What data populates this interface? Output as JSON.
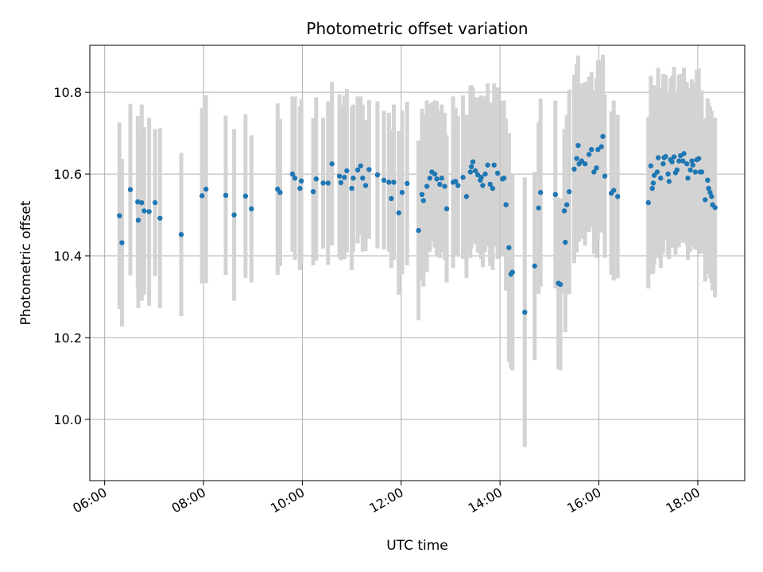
{
  "chart_data": {
    "type": "scatter",
    "title": "Photometric offset variation",
    "xlabel": "UTC time",
    "ylabel": "Photometric offset",
    "xlim": [
      5.7,
      18.95
    ],
    "ylim": [
      9.85,
      10.915
    ],
    "grid": true,
    "x_ticks": [
      {
        "value": 6,
        "label": "06:00"
      },
      {
        "value": 8,
        "label": "08:00"
      },
      {
        "value": 10,
        "label": "10:00"
      },
      {
        "value": 12,
        "label": "12:00"
      },
      {
        "value": 14,
        "label": "14:00"
      },
      {
        "value": 16,
        "label": "16:00"
      },
      {
        "value": 18,
        "label": "18:00"
      }
    ],
    "y_ticks": [
      {
        "value": 10.0,
        "label": "10.0"
      },
      {
        "value": 10.2,
        "label": "10.2"
      },
      {
        "value": 10.4,
        "label": "10.4"
      },
      {
        "value": 10.6,
        "label": "10.6"
      },
      {
        "value": 10.8,
        "label": "10.8"
      }
    ],
    "colors": {
      "point": "#1f77b4",
      "errorbar": "#d3d3d3",
      "grid": "#b0b0b0"
    },
    "series": [
      {
        "points": [
          [
            6.3,
            10.498,
            0.228
          ],
          [
            6.35,
            10.432,
            0.205
          ],
          [
            6.52,
            10.562,
            0.21
          ],
          [
            6.67,
            10.532,
            0.21
          ],
          [
            6.68,
            10.487,
            0.215
          ],
          [
            6.75,
            10.53,
            0.24
          ],
          [
            6.8,
            10.51,
            0.205
          ],
          [
            6.9,
            10.508,
            0.23
          ],
          [
            7.02,
            10.53,
            0.18
          ],
          [
            7.12,
            10.492,
            0.22
          ],
          [
            7.55,
            10.452,
            0.2
          ],
          [
            7.97,
            10.547,
            0.215
          ],
          [
            8.05,
            10.563,
            0.23
          ],
          [
            8.45,
            10.548,
            0.195
          ],
          [
            8.62,
            10.5,
            0.21
          ],
          [
            8.85,
            10.546,
            0.2
          ],
          [
            8.97,
            10.515,
            0.18
          ],
          [
            9.5,
            10.563,
            0.21
          ],
          [
            9.55,
            10.555,
            0.18
          ],
          [
            9.8,
            10.6,
            0.19
          ],
          [
            9.85,
            10.59,
            0.2
          ],
          [
            9.95,
            10.565,
            0.2
          ],
          [
            9.98,
            10.583,
            0.2
          ],
          [
            10.22,
            10.557,
            0.18
          ],
          [
            10.28,
            10.588,
            0.2
          ],
          [
            10.42,
            10.578,
            0.16
          ],
          [
            10.52,
            10.578,
            0.2
          ],
          [
            10.6,
            10.625,
            0.2
          ],
          [
            10.75,
            10.595,
            0.2
          ],
          [
            10.78,
            10.579,
            0.19
          ],
          [
            10.85,
            10.592,
            0.2
          ],
          [
            10.9,
            10.608,
            0.2
          ],
          [
            11.0,
            10.565,
            0.2
          ],
          [
            11.03,
            10.59,
            0.18
          ],
          [
            11.12,
            10.61,
            0.18
          ],
          [
            11.18,
            10.62,
            0.17
          ],
          [
            11.22,
            10.59,
            0.18
          ],
          [
            11.28,
            10.572,
            0.16
          ],
          [
            11.35,
            10.611,
            0.17
          ],
          [
            11.52,
            10.598,
            0.18
          ],
          [
            11.65,
            10.585,
            0.17
          ],
          [
            11.75,
            10.58,
            0.17
          ],
          [
            11.8,
            10.54,
            0.17
          ],
          [
            11.85,
            10.58,
            0.19
          ],
          [
            11.95,
            10.505,
            0.2
          ],
          [
            12.02,
            10.555,
            0.2
          ],
          [
            12.12,
            10.577,
            0.2
          ],
          [
            12.35,
            10.462,
            0.22
          ],
          [
            12.42,
            10.55,
            0.21
          ],
          [
            12.45,
            10.535,
            0.21
          ],
          [
            12.52,
            10.57,
            0.21
          ],
          [
            12.58,
            10.59,
            0.18
          ],
          [
            12.62,
            10.605,
            0.17
          ],
          [
            12.68,
            10.6,
            0.18
          ],
          [
            12.72,
            10.588,
            0.19
          ],
          [
            12.78,
            10.575,
            0.18
          ],
          [
            12.82,
            10.59,
            0.18
          ],
          [
            12.88,
            10.57,
            0.18
          ],
          [
            12.92,
            10.515,
            0.18
          ],
          [
            13.05,
            10.58,
            0.21
          ],
          [
            13.1,
            10.582,
            0.18
          ],
          [
            13.15,
            10.572,
            0.17
          ],
          [
            13.25,
            10.592,
            0.2
          ],
          [
            13.32,
            10.545,
            0.2
          ],
          [
            13.4,
            10.605,
            0.21
          ],
          [
            13.42,
            10.618,
            0.2
          ],
          [
            13.45,
            10.63,
            0.18
          ],
          [
            13.5,
            10.608,
            0.18
          ],
          [
            13.55,
            10.598,
            0.19
          ],
          [
            13.6,
            10.585,
            0.18
          ],
          [
            13.62,
            10.592,
            0.2
          ],
          [
            13.65,
            10.572,
            0.2
          ],
          [
            13.7,
            10.6,
            0.19
          ],
          [
            13.75,
            10.622,
            0.2
          ],
          [
            13.8,
            10.575,
            0.2
          ],
          [
            13.85,
            10.565,
            0.2
          ],
          [
            13.88,
            10.622,
            0.2
          ],
          [
            13.95,
            10.602,
            0.21
          ],
          [
            14.05,
            10.588,
            0.19
          ],
          [
            14.08,
            10.59,
            0.19
          ],
          [
            14.12,
            10.525,
            0.21
          ],
          [
            14.18,
            10.42,
            0.28
          ],
          [
            14.22,
            10.355,
            0.23
          ],
          [
            14.25,
            10.36,
            0.24
          ],
          [
            14.5,
            10.262,
            0.33
          ],
          [
            14.7,
            10.375,
            0.23
          ],
          [
            14.78,
            10.517,
            0.21
          ],
          [
            14.82,
            10.555,
            0.23
          ],
          [
            15.12,
            10.55,
            0.23
          ],
          [
            15.18,
            10.333,
            0.21
          ],
          [
            15.22,
            10.33,
            0.21
          ],
          [
            15.3,
            10.51,
            0.2
          ],
          [
            15.32,
            10.433,
            0.22
          ],
          [
            15.35,
            10.525,
            0.22
          ],
          [
            15.4,
            10.557,
            0.25
          ],
          [
            15.5,
            10.612,
            0.23
          ],
          [
            15.55,
            10.638,
            0.23
          ],
          [
            15.58,
            10.67,
            0.22
          ],
          [
            15.6,
            10.625,
            0.19
          ],
          [
            15.65,
            10.632,
            0.19
          ],
          [
            15.72,
            10.625,
            0.2
          ],
          [
            15.8,
            10.648,
            0.19
          ],
          [
            15.85,
            10.66,
            0.19
          ],
          [
            15.9,
            10.605,
            0.2
          ],
          [
            15.95,
            10.615,
            0.22
          ],
          [
            15.98,
            10.66,
            0.22
          ],
          [
            16.05,
            10.667,
            0.21
          ],
          [
            16.08,
            10.692,
            0.2
          ],
          [
            16.12,
            10.595,
            0.2
          ],
          [
            16.25,
            10.553,
            0.2
          ],
          [
            16.3,
            10.56,
            0.22
          ],
          [
            16.38,
            10.545,
            0.2
          ],
          [
            17.0,
            10.53,
            0.21
          ],
          [
            17.05,
            10.62,
            0.22
          ],
          [
            17.08,
            10.565,
            0.21
          ],
          [
            17.1,
            10.578,
            0.22
          ],
          [
            17.12,
            10.597,
            0.22
          ],
          [
            17.18,
            10.605,
            0.21
          ],
          [
            17.2,
            10.64,
            0.22
          ],
          [
            17.25,
            10.59,
            0.22
          ],
          [
            17.3,
            10.625,
            0.22
          ],
          [
            17.32,
            10.64,
            0.2
          ],
          [
            17.35,
            10.643,
            0.2
          ],
          [
            17.4,
            10.6,
            0.2
          ],
          [
            17.42,
            10.582,
            0.19
          ],
          [
            17.45,
            10.635,
            0.2
          ],
          [
            17.48,
            10.63,
            0.21
          ],
          [
            17.52,
            10.642,
            0.22
          ],
          [
            17.55,
            10.603,
            0.2
          ],
          [
            17.58,
            10.61,
            0.19
          ],
          [
            17.62,
            10.632,
            0.21
          ],
          [
            17.65,
            10.645,
            0.2
          ],
          [
            17.7,
            10.632,
            0.2
          ],
          [
            17.72,
            10.65,
            0.21
          ],
          [
            17.78,
            10.625,
            0.2
          ],
          [
            17.8,
            10.59,
            0.2
          ],
          [
            17.85,
            10.61,
            0.2
          ],
          [
            17.88,
            10.632,
            0.2
          ],
          [
            17.9,
            10.622,
            0.2
          ],
          [
            17.95,
            10.605,
            0.19
          ],
          [
            17.98,
            10.635,
            0.22
          ],
          [
            18.02,
            10.638,
            0.22
          ],
          [
            18.05,
            10.605,
            0.2
          ],
          [
            18.08,
            10.605,
            0.2
          ],
          [
            18.15,
            10.537,
            0.2
          ],
          [
            18.2,
            10.585,
            0.2
          ],
          [
            18.22,
            10.565,
            0.21
          ],
          [
            18.25,
            10.555,
            0.21
          ],
          [
            18.28,
            10.545,
            0.21
          ],
          [
            18.3,
            10.525,
            0.21
          ],
          [
            18.35,
            10.518,
            0.22
          ]
        ]
      }
    ]
  }
}
